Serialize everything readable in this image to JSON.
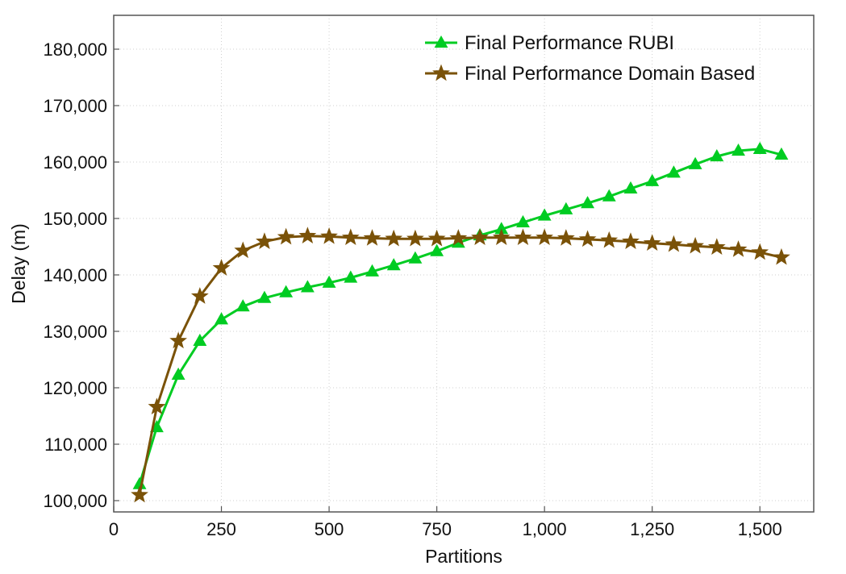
{
  "chart_data": {
    "type": "line",
    "xlabel": "Partitions",
    "ylabel": "Delay (m)",
    "xlim": [
      0,
      1625
    ],
    "ylim": [
      98000,
      186000
    ],
    "x_ticks": [
      0,
      250,
      500,
      750,
      1000,
      1250,
      1500
    ],
    "x_tick_labels": [
      "0",
      "250",
      "500",
      "750",
      "1,000",
      "1,250",
      "1,500"
    ],
    "y_ticks": [
      100000,
      110000,
      120000,
      130000,
      140000,
      150000,
      160000,
      170000,
      180000
    ],
    "y_tick_labels": [
      "100,000",
      "110,000",
      "120,000",
      "130,000",
      "140,000",
      "150,000",
      "160,000",
      "170,000",
      "180,000"
    ],
    "grid": true,
    "legend_position": "top-right",
    "x": [
      60,
      100,
      150,
      200,
      250,
      300,
      350,
      400,
      450,
      500,
      550,
      600,
      650,
      700,
      750,
      800,
      850,
      900,
      950,
      1000,
      1050,
      1100,
      1150,
      1200,
      1250,
      1300,
      1350,
      1400,
      1450,
      1500,
      1550
    ],
    "series": [
      {
        "name": "Final Performance RUBI",
        "color": "#00cc22",
        "marker": "triangle",
        "values": [
          102900,
          113000,
          122300,
          128300,
          132100,
          134400,
          135900,
          136900,
          137800,
          138600,
          139500,
          140600,
          141700,
          142900,
          144200,
          145700,
          147000,
          148100,
          149300,
          150500,
          151600,
          152700,
          153900,
          155300,
          156600,
          158100,
          159600,
          161000,
          162000,
          162300,
          161300
        ]
      },
      {
        "name": "Final Performance Domain Based",
        "color": "#7a5208",
        "marker": "star",
        "values": [
          101000,
          116600,
          128300,
          136200,
          141200,
          144300,
          145900,
          146700,
          146900,
          146800,
          146600,
          146500,
          146400,
          146400,
          146400,
          146500,
          146600,
          146600,
          146600,
          146600,
          146500,
          146300,
          146100,
          145900,
          145600,
          145400,
          145100,
          144900,
          144500,
          144000,
          143100
        ]
      }
    ]
  }
}
